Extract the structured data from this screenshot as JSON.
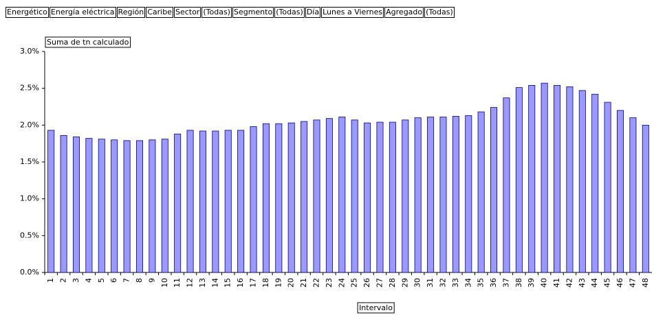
{
  "filters": [
    {
      "label": "Energético",
      "value": "Energía eléctrica"
    },
    {
      "label": "Región",
      "value": "Caribe"
    },
    {
      "label": "Sector",
      "value": "(Todas)"
    },
    {
      "label": "Segmento",
      "value": "(Todas)"
    },
    {
      "label": "Día",
      "value": "Lunes a Viernes"
    },
    {
      "label": "Agregado",
      "value": "(Todas)"
    }
  ],
  "chart_data": {
    "type": "bar",
    "title": "Suma de tn calculado",
    "x_label": "Intervalo",
    "categories": [
      "1",
      "2",
      "3",
      "4",
      "5",
      "6",
      "7",
      "8",
      "9",
      "10",
      "11",
      "12",
      "13",
      "14",
      "15",
      "16",
      "17",
      "18",
      "19",
      "20",
      "21",
      "22",
      "23",
      "24",
      "25",
      "26",
      "27",
      "28",
      "29",
      "30",
      "31",
      "32",
      "33",
      "34",
      "35",
      "36",
      "37",
      "38",
      "39",
      "40",
      "41",
      "42",
      "43",
      "44",
      "45",
      "46",
      "47",
      "48"
    ],
    "values": [
      1.93,
      1.86,
      1.84,
      1.82,
      1.81,
      1.8,
      1.79,
      1.79,
      1.8,
      1.81,
      1.88,
      1.93,
      1.92,
      1.92,
      1.93,
      1.93,
      1.98,
      2.02,
      2.02,
      2.03,
      2.05,
      2.07,
      2.09,
      2.11,
      2.07,
      2.03,
      2.04,
      2.04,
      2.07,
      2.1,
      2.11,
      2.11,
      2.12,
      2.13,
      2.18,
      2.24,
      2.37,
      2.51,
      2.54,
      2.57,
      2.54,
      2.52,
      2.47,
      2.42,
      2.31,
      2.2,
      2.1,
      2.0
    ],
    "color": "#9999ff",
    "ylim": [
      0,
      3
    ],
    "yticks": [
      {
        "value": 0,
        "label": "0.0%"
      },
      {
        "value": 0.5,
        "label": "0.5%"
      },
      {
        "value": 1,
        "label": "1.0%"
      },
      {
        "value": 1.5,
        "label": "1.5%"
      },
      {
        "value": 2,
        "label": "2.0%"
      },
      {
        "value": 2.5,
        "label": "2.5%"
      },
      {
        "value": 3,
        "label": "3.0%"
      }
    ],
    "grid": false
  }
}
